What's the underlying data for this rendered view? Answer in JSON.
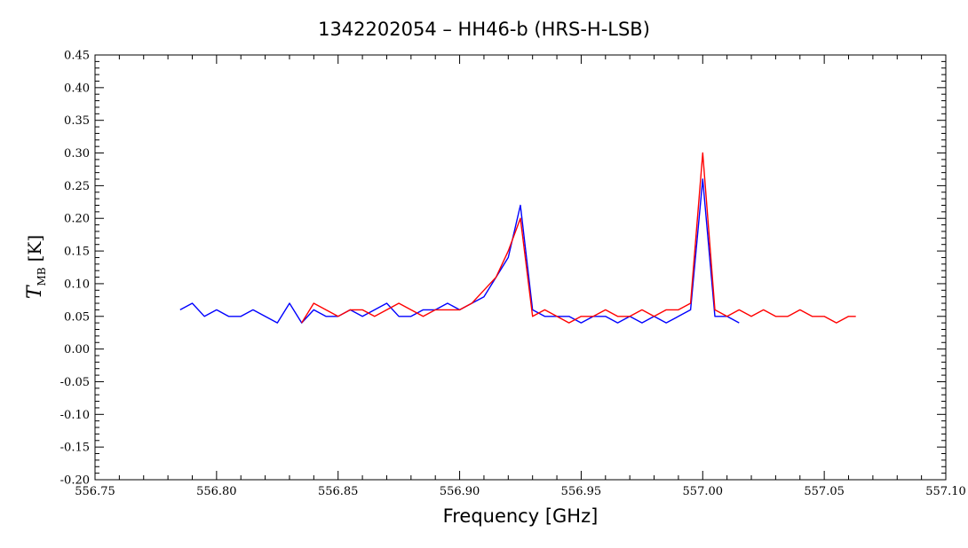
{
  "chart_data": {
    "type": "line",
    "title": "1342202054 – HH46-b (HRS-H-LSB)",
    "xlabel": "Frequency [GHz]",
    "ylabel": {
      "symbol": "T",
      "subscript": "MB",
      "unit": "[K]"
    },
    "xlim": [
      556.75,
      557.1
    ],
    "ylim": [
      -0.2,
      0.45
    ],
    "xticks": [
      "556.75",
      "556.80",
      "556.85",
      "556.90",
      "556.95",
      "557.00",
      "557.05",
      "557.10"
    ],
    "yticks": [
      "-0.20",
      "-0.15",
      "-0.10",
      "-0.05",
      "0.00",
      "0.05",
      "0.10",
      "0.15",
      "0.20",
      "0.25",
      "0.30",
      "0.35",
      "0.40",
      "0.45"
    ],
    "grid": false,
    "legend": "none",
    "series": [
      {
        "color": "#0000ff",
        "x": [
          556.785,
          556.79,
          556.795,
          556.8,
          556.805,
          556.81,
          556.815,
          556.82,
          556.825,
          556.83,
          556.835,
          556.84,
          556.845,
          556.85,
          556.855,
          556.86,
          556.865,
          556.87,
          556.875,
          556.88,
          556.885,
          556.89,
          556.895,
          556.9,
          556.905,
          556.91,
          556.915,
          556.92,
          556.925,
          556.93,
          556.935,
          556.94,
          556.945,
          556.95,
          556.955,
          556.96,
          556.965,
          556.97,
          556.975,
          556.98,
          556.985,
          556.99,
          556.995,
          557.0,
          557.005,
          557.01,
          557.015
        ],
        "y": [
          0.06,
          0.07,
          0.05,
          0.06,
          0.05,
          0.05,
          0.06,
          0.05,
          0.04,
          0.07,
          0.04,
          0.06,
          0.05,
          0.05,
          0.06,
          0.05,
          0.06,
          0.07,
          0.05,
          0.05,
          0.06,
          0.06,
          0.07,
          0.06,
          0.07,
          0.08,
          0.11,
          0.14,
          0.22,
          0.06,
          0.05,
          0.05,
          0.05,
          0.04,
          0.05,
          0.05,
          0.04,
          0.05,
          0.04,
          0.05,
          0.04,
          0.05,
          0.06,
          0.26,
          0.05,
          0.05,
          0.04
        ]
      },
      {
        "color": "#ff0000",
        "x": [
          556.835,
          556.84,
          556.845,
          556.85,
          556.855,
          556.86,
          556.865,
          556.87,
          556.875,
          556.88,
          556.885,
          556.89,
          556.895,
          556.9,
          556.905,
          556.91,
          556.915,
          556.92,
          556.925,
          556.93,
          556.935,
          556.94,
          556.945,
          556.95,
          556.955,
          556.96,
          556.965,
          556.97,
          556.975,
          556.98,
          556.985,
          556.99,
          556.995,
          557.0,
          557.005,
          557.01,
          557.015,
          557.02,
          557.025,
          557.03,
          557.035,
          557.04,
          557.045,
          557.05,
          557.055,
          557.06,
          557.063
        ],
        "y": [
          0.04,
          0.07,
          0.06,
          0.05,
          0.06,
          0.06,
          0.05,
          0.06,
          0.07,
          0.06,
          0.05,
          0.06,
          0.06,
          0.06,
          0.07,
          0.09,
          0.11,
          0.15,
          0.2,
          0.05,
          0.06,
          0.05,
          0.04,
          0.05,
          0.05,
          0.06,
          0.05,
          0.05,
          0.06,
          0.05,
          0.06,
          0.06,
          0.07,
          0.3,
          0.06,
          0.05,
          0.06,
          0.05,
          0.06,
          0.05,
          0.05,
          0.06,
          0.05,
          0.05,
          0.04,
          0.05,
          0.05
        ]
      }
    ]
  }
}
